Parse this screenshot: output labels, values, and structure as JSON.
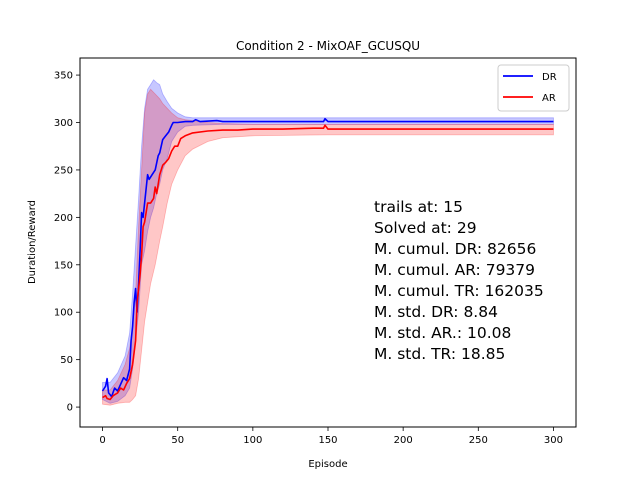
{
  "chart_data": {
    "type": "line",
    "title": "Condition 2 - MixOAF_GCUSQU",
    "xlabel": "Episode",
    "ylabel": "Duration/Reward",
    "xlim": [
      -15,
      315
    ],
    "ylim": [
      -21,
      368
    ],
    "xticks": [
      0,
      50,
      100,
      150,
      200,
      250,
      300
    ],
    "yticks": [
      0,
      50,
      100,
      150,
      200,
      250,
      300,
      350
    ],
    "grid": false,
    "legend_position": "top-right",
    "series": [
      {
        "name": "DR",
        "color": "#0000ff",
        "band_color": "#0000ff",
        "points": [
          [
            0,
            17
          ],
          [
            2,
            22
          ],
          [
            3,
            30
          ],
          [
            4,
            15
          ],
          [
            6,
            11
          ],
          [
            8,
            20
          ],
          [
            10,
            17
          ],
          [
            12,
            24
          ],
          [
            14,
            31
          ],
          [
            16,
            28
          ],
          [
            18,
            40
          ],
          [
            19,
            70
          ],
          [
            20,
            85
          ],
          [
            21,
            110
          ],
          [
            22,
            125
          ],
          [
            23,
            100
          ],
          [
            24,
            130
          ],
          [
            25,
            165
          ],
          [
            26,
            205
          ],
          [
            27,
            200
          ],
          [
            28,
            215
          ],
          [
            29,
            230
          ],
          [
            30,
            245
          ],
          [
            31,
            240
          ],
          [
            33,
            245
          ],
          [
            35,
            250
          ],
          [
            37,
            265
          ],
          [
            38,
            268
          ],
          [
            40,
            282
          ],
          [
            42,
            286
          ],
          [
            44,
            290
          ],
          [
            46,
            297
          ],
          [
            47,
            300
          ],
          [
            50,
            300
          ],
          [
            55,
            301
          ],
          [
            60,
            301
          ],
          [
            62,
            303
          ],
          [
            65,
            301
          ],
          [
            76,
            302
          ],
          [
            80,
            301
          ],
          [
            100,
            301
          ],
          [
            147,
            301
          ],
          [
            148,
            304
          ],
          [
            150,
            301
          ],
          [
            200,
            301
          ],
          [
            250,
            301
          ],
          [
            300,
            301
          ]
        ],
        "band": [
          [
            0,
            8,
            26
          ],
          [
            5,
            4,
            26
          ],
          [
            10,
            6,
            36
          ],
          [
            15,
            12,
            54
          ],
          [
            18,
            20,
            78
          ],
          [
            20,
            40,
            120
          ],
          [
            22,
            70,
            170
          ],
          [
            24,
            100,
            220
          ],
          [
            26,
            150,
            275
          ],
          [
            28,
            165,
            315
          ],
          [
            30,
            185,
            335
          ],
          [
            32,
            200,
            340
          ],
          [
            34,
            210,
            345
          ],
          [
            36,
            225,
            342
          ],
          [
            38,
            235,
            340
          ],
          [
            40,
            250,
            330
          ],
          [
            43,
            262,
            322
          ],
          [
            46,
            280,
            315
          ],
          [
            50,
            290,
            310
          ],
          [
            55,
            296,
            306
          ],
          [
            60,
            297,
            305
          ],
          [
            80,
            298,
            305
          ],
          [
            100,
            298,
            305
          ],
          [
            150,
            298,
            305
          ],
          [
            200,
            298,
            305
          ],
          [
            250,
            298,
            305
          ],
          [
            300,
            298,
            305
          ]
        ]
      },
      {
        "name": "AR",
        "color": "#ff0000",
        "band_color": "#ff0000",
        "points": [
          [
            0,
            10
          ],
          [
            2,
            12
          ],
          [
            3,
            9
          ],
          [
            5,
            8
          ],
          [
            7,
            12
          ],
          [
            10,
            15
          ],
          [
            12,
            20
          ],
          [
            14,
            18
          ],
          [
            16,
            25
          ],
          [
            18,
            30
          ],
          [
            20,
            45
          ],
          [
            22,
            70
          ],
          [
            23,
            110
          ],
          [
            25,
            140
          ],
          [
            26,
            160
          ],
          [
            27,
            190
          ],
          [
            28,
            195
          ],
          [
            30,
            215
          ],
          [
            32,
            215
          ],
          [
            34,
            220
          ],
          [
            35,
            232
          ],
          [
            36,
            225
          ],
          [
            38,
            245
          ],
          [
            40,
            255
          ],
          [
            42,
            258
          ],
          [
            44,
            262
          ],
          [
            46,
            270
          ],
          [
            48,
            275
          ],
          [
            50,
            275
          ],
          [
            52,
            283
          ],
          [
            55,
            286
          ],
          [
            60,
            289
          ],
          [
            70,
            291
          ],
          [
            80,
            292
          ],
          [
            90,
            292
          ],
          [
            100,
            293
          ],
          [
            120,
            293
          ],
          [
            140,
            294
          ],
          [
            147,
            294
          ],
          [
            148,
            297
          ],
          [
            150,
            293
          ],
          [
            180,
            293
          ],
          [
            200,
            293
          ],
          [
            220,
            293
          ],
          [
            250,
            293
          ],
          [
            280,
            293
          ],
          [
            300,
            293
          ]
        ],
        "band": [
          [
            0,
            3,
            18
          ],
          [
            5,
            2,
            18
          ],
          [
            10,
            4,
            28
          ],
          [
            15,
            5,
            45
          ],
          [
            18,
            5,
            62
          ],
          [
            20,
            8,
            85
          ],
          [
            22,
            12,
            120
          ],
          [
            24,
            30,
            190
          ],
          [
            26,
            60,
            250
          ],
          [
            28,
            90,
            310
          ],
          [
            30,
            110,
            330
          ],
          [
            32,
            130,
            335
          ],
          [
            35,
            150,
            330
          ],
          [
            38,
            175,
            325
          ],
          [
            40,
            190,
            320
          ],
          [
            43,
            215,
            315
          ],
          [
            46,
            235,
            310
          ],
          [
            50,
            250,
            305
          ],
          [
            55,
            265,
            303
          ],
          [
            60,
            272,
            302
          ],
          [
            70,
            280,
            300
          ],
          [
            80,
            284,
            299
          ],
          [
            100,
            286,
            298
          ],
          [
            150,
            287,
            298
          ],
          [
            200,
            287,
            298
          ],
          [
            250,
            287,
            298
          ],
          [
            300,
            287,
            298
          ]
        ]
      }
    ],
    "annotations": [
      "trails at: 15",
      "Solved at: 29",
      "M. cumul. DR: 82656",
      "M. cumul. AR: 79379",
      "M. cumul. TR: 162035",
      "M. std. DR: 8.84",
      "M. std. AR.: 10.08",
      "M. std. TR: 18.85"
    ]
  }
}
